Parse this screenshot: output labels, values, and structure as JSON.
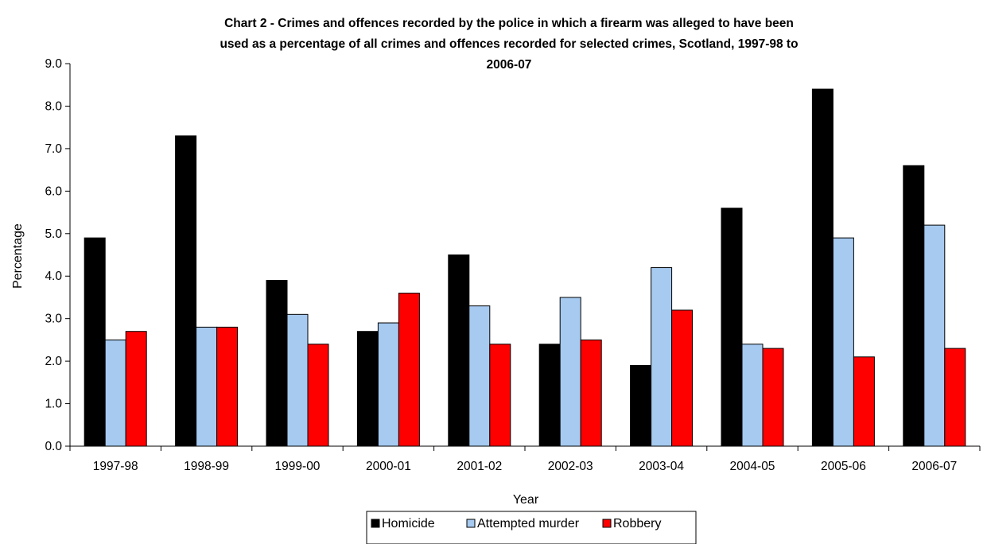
{
  "chart_data": {
    "type": "bar",
    "title_lines": [
      "Chart 2 - Crimes and offences recorded by the police in which a firearm was alleged to have been",
      "used as a percentage of all crimes and offences recorded for selected crimes, Scotland, 1997-98 to",
      "2006-07"
    ],
    "xlabel": "Year",
    "ylabel": "Percentage",
    "ylim": [
      0,
      9
    ],
    "yticks": [
      "0.0",
      "1.0",
      "2.0",
      "3.0",
      "4.0",
      "5.0",
      "6.0",
      "7.0",
      "8.0",
      "9.0"
    ],
    "categories": [
      "1997-98",
      "1998-99",
      "1999-00",
      "2000-01",
      "2001-02",
      "2002-03",
      "2003-04",
      "2004-05",
      "2005-06",
      "2006-07"
    ],
    "series": [
      {
        "name": "Homicide",
        "color": "#000000",
        "values": [
          4.9,
          7.3,
          3.9,
          2.7,
          4.5,
          2.4,
          1.9,
          5.6,
          8.4,
          6.6
        ]
      },
      {
        "name": "Attempted murder",
        "color": "#a6caf0",
        "values": [
          2.5,
          2.8,
          3.1,
          2.9,
          3.3,
          3.5,
          4.2,
          2.4,
          4.9,
          5.2
        ]
      },
      {
        "name": "Robbery",
        "color": "#ff0000",
        "values": [
          2.7,
          2.8,
          2.4,
          3.6,
          2.4,
          2.5,
          3.2,
          2.3,
          2.1,
          2.3
        ]
      }
    ],
    "grid": false,
    "legend_position": "bottom"
  }
}
